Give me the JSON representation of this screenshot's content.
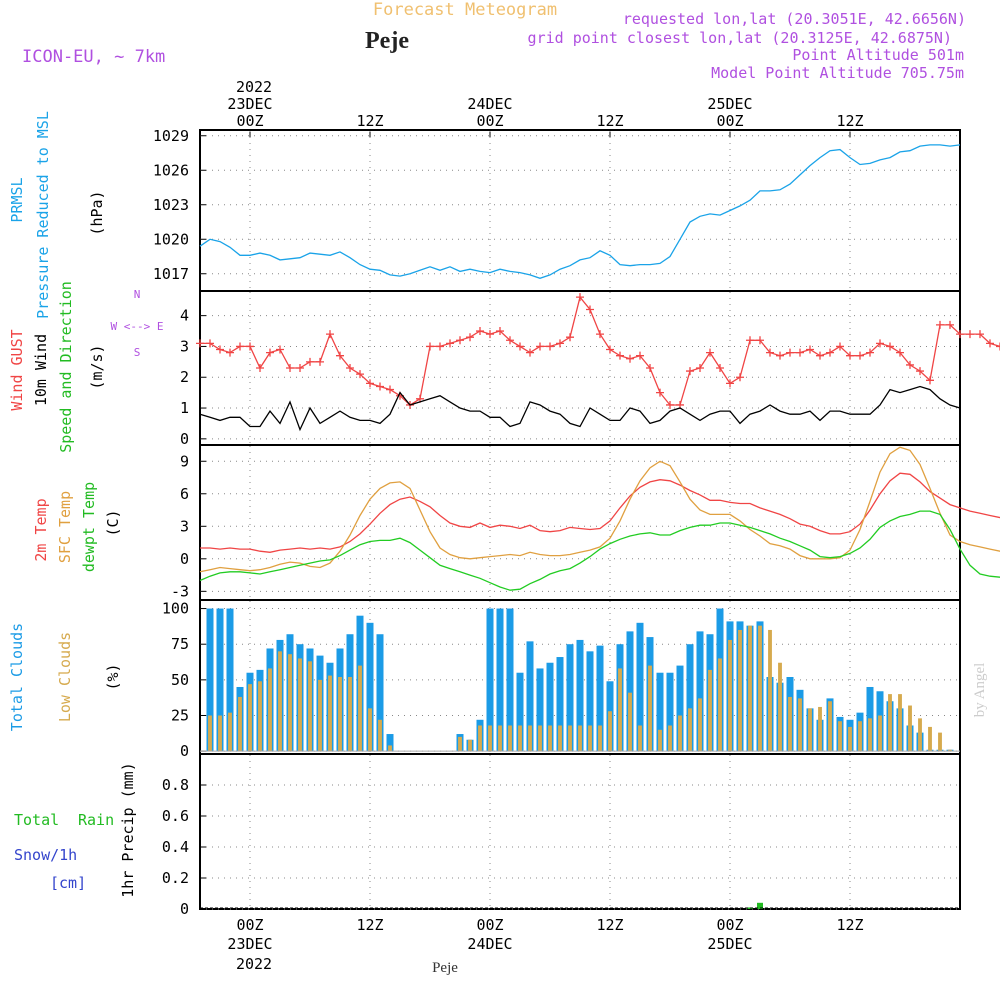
{
  "header": {
    "title": "Forecast Meteogram",
    "city": "Peje",
    "model": "ICON-EU, ~ 7km",
    "requested": "requested lon,lat (20.3051E, 42.6656N)",
    "gridpoint": "grid point closest lon,lat (20.3125E, 42.6875N)",
    "point_alt": "Point Altitude 501m",
    "model_alt": "Model Point Altitude 705.75m",
    "signature": "by Angel",
    "footer_city": "Peje"
  },
  "time_axis": {
    "top_year": "2022",
    "top_dates": [
      {
        "label": "23DEC",
        "hour": 12
      },
      {
        "label": "24DEC",
        "hour": 36
      },
      {
        "label": "25DEC",
        "hour": 60
      }
    ],
    "bottom_dates": [
      {
        "label": "23DEC",
        "hour": 12
      },
      {
        "label": "24DEC",
        "hour": 36
      },
      {
        "label": "25DEC",
        "hour": 60
      }
    ],
    "bottom_year": "2022",
    "ticks": [
      {
        "label": "00Z",
        "hour": 12
      },
      {
        "label": "12Z",
        "hour": 24
      },
      {
        "label": "00Z",
        "hour": 36
      },
      {
        "label": "12Z",
        "hour": 48
      },
      {
        "label": "00Z",
        "hour": 60
      },
      {
        "label": "12Z",
        "hour": 72
      }
    ],
    "hours_range": [
      7,
      83
    ]
  },
  "panel_labels": {
    "pressure": [
      "PRMSL",
      "Pressure Reduced to MSL",
      "(hPa)"
    ],
    "wind": [
      "Wind GUST",
      "10m Wind",
      "Speed and Direction",
      "(m/s)"
    ],
    "compass": [
      "N",
      "W <--> E",
      "S"
    ],
    "temp": [
      "2m Temp",
      "SFC Temp",
      "dewpt Temp",
      "(C)"
    ],
    "clouds": [
      "Total Clouds",
      "Low Clouds",
      "(%)"
    ],
    "precip": [
      "Total",
      "Rain",
      "Snow/1h",
      "[cm]",
      "1hr Precip (mm)"
    ]
  },
  "colors": {
    "pressure": "#1aa3e8",
    "gust": "#f04545",
    "wind": "#000000",
    "t2m": "#f04545",
    "sfc": "#e0a040",
    "dewpt": "#22cc22",
    "total_clouds": "#1b9be6",
    "low_clouds": "#d6aa4e",
    "rain": "#22bb22",
    "snow": "#3344cc",
    "title": "#f0c070",
    "info": "#b050e0"
  },
  "chart_data": [
    {
      "type": "line",
      "name": "pressure",
      "ylabel": "(hPa)",
      "ylim": [
        1015.5,
        1029.5
      ],
      "yticks": [
        1017,
        1020,
        1023,
        1026,
        1029
      ],
      "series": [
        {
          "name": "PRMSL",
          "x0": 7,
          "dx": 1,
          "values": [
            1019.4,
            1020,
            1019.8,
            1019.3,
            1018.6,
            1018.6,
            1018.8,
            1018.6,
            1018.2,
            1018.3,
            1018.4,
            1018.8,
            1018.7,
            1018.6,
            1018.9,
            1018.4,
            1017.8,
            1017.4,
            1017.3,
            1016.9,
            1016.8,
            1017,
            1017.3,
            1017.6,
            1017.3,
            1017.6,
            1017.2,
            1017.4,
            1017.2,
            1017.1,
            1017.4,
            1017.2,
            1017.1,
            1016.9,
            1016.6,
            1016.9,
            1017.4,
            1017.7,
            1018.2,
            1018.4,
            1019,
            1018.6,
            1017.8,
            1017.7,
            1017.8,
            1017.8,
            1017.9,
            1018.5,
            1020,
            1021.5,
            1022,
            1022.2,
            1022.1,
            1022.5,
            1022.9,
            1023.4,
            1024.2,
            1024.2,
            1024.3,
            1024.8,
            1025.6,
            1026.4,
            1027.1,
            1027.7,
            1027.8,
            1027.1,
            1026.5,
            1026.6,
            1026.9,
            1027.1,
            1027.6,
            1027.7,
            1028.1,
            1028.2,
            1028.2,
            1028.1,
            1028.2
          ]
        }
      ]
    },
    {
      "type": "line",
      "name": "wind",
      "ylabel": "(m/s)",
      "ylim": [
        -0.2,
        4.8
      ],
      "yticks": [
        0,
        1,
        2,
        3,
        4
      ],
      "series": [
        {
          "name": "Wind GUST",
          "x0": 7,
          "dx": 1,
          "values": [
            3.1,
            3.1,
            2.9,
            2.8,
            3,
            3,
            2.3,
            2.8,
            2.9,
            2.3,
            2.3,
            2.5,
            2.5,
            3.4,
            2.7,
            2.3,
            2.1,
            1.8,
            1.7,
            1.6,
            1.4,
            1.1,
            1.3,
            3,
            3,
            3.1,
            3.2,
            3.3,
            3.5,
            3.4,
            3.5,
            3.2,
            3,
            2.8,
            3,
            3,
            3.1,
            3.3,
            4.6,
            4.2,
            3.4,
            2.9,
            2.7,
            2.6,
            2.7,
            2.3,
            1.5,
            1.1,
            1.1,
            2.2,
            2.3,
            2.8,
            2.3,
            1.8,
            2,
            3.2,
            3.2,
            2.8,
            2.7,
            2.8,
            2.8,
            2.9,
            2.7,
            2.8,
            3,
            2.7,
            2.7,
            2.8,
            3.1,
            3,
            2.8,
            2.4,
            2.2,
            1.9,
            3.7,
            3.7,
            3.4,
            3.4,
            3.4,
            3.1,
            3
          ]
        },
        {
          "name": "10m Wind",
          "x0": 7,
          "dx": 1,
          "values": [
            0.8,
            0.7,
            0.6,
            0.7,
            0.7,
            0.4,
            0.4,
            0.9,
            0.5,
            1.2,
            0.3,
            1,
            0.5,
            0.7,
            0.9,
            0.7,
            0.6,
            0.6,
            0.5,
            0.8,
            1.5,
            1.1,
            1.2,
            1.3,
            1.4,
            1.2,
            1,
            0.9,
            0.9,
            0.7,
            0.7,
            0.4,
            0.5,
            1.2,
            1.1,
            0.9,
            0.8,
            0.5,
            0.4,
            1,
            0.8,
            0.6,
            0.6,
            1,
            0.9,
            0.5,
            0.6,
            0.9,
            1,
            0.8,
            0.6,
            0.8,
            0.9,
            0.9,
            0.5,
            0.8,
            0.9,
            1.1,
            0.9,
            0.8,
            0.8,
            0.9,
            0.6,
            0.9,
            0.9,
            0.8,
            0.8,
            0.8,
            1.1,
            1.6,
            1.5,
            1.6,
            1.7,
            1.6,
            1.3,
            1.1,
            1
          ]
        }
      ]
    },
    {
      "type": "line",
      "name": "temperature",
      "ylabel": "(C)",
      "ylim": [
        -3.8,
        10.5
      ],
      "yticks": [
        -3,
        0,
        3,
        6,
        9
      ],
      "series": [
        {
          "name": "2m Temp",
          "x0": 7,
          "dx": 1,
          "values": [
            1,
            1,
            0.9,
            1,
            0.9,
            0.9,
            0.7,
            0.6,
            0.8,
            0.9,
            1,
            0.9,
            1,
            0.9,
            1.1,
            1.6,
            2.3,
            3.2,
            4.2,
            5,
            5.5,
            5.7,
            5.3,
            4.8,
            4,
            3.3,
            3,
            2.9,
            3.3,
            2.9,
            3.1,
            3,
            2.8,
            3.1,
            2.6,
            2.5,
            2.6,
            2.9,
            2.8,
            2.7,
            2.8,
            3.5,
            4.7,
            5.8,
            6.6,
            7.1,
            7.3,
            7.2,
            6.8,
            6.3,
            5.9,
            5.4,
            5.4,
            5.2,
            5.1,
            5.1,
            4.7,
            4.4,
            4.1,
            3.7,
            3.2,
            3,
            2.6,
            2.3,
            2.3,
            2.5,
            3.2,
            4.5,
            6,
            7.2,
            7.9,
            7.8,
            7.1,
            6.2,
            5.6,
            5,
            4.7,
            4.4,
            4.2,
            4,
            3.8,
            3.7,
            3.7
          ]
        },
        {
          "name": "SFC Temp",
          "x0": 7,
          "dx": 1,
          "values": [
            -1.2,
            -1,
            -0.8,
            -0.9,
            -1,
            -1.1,
            -1,
            -0.8,
            -0.5,
            -0.3,
            -0.4,
            -0.7,
            -0.8,
            -0.4,
            0.7,
            2.2,
            4,
            5.5,
            6.5,
            7,
            7.1,
            6.5,
            4.5,
            2.5,
            1,
            0.4,
            0.1,
            0,
            0.1,
            0.2,
            0.3,
            0.4,
            0.3,
            0.6,
            0.4,
            0.3,
            0.3,
            0.4,
            0.6,
            0.8,
            1.1,
            1.9,
            3.5,
            5.5,
            7.2,
            8.4,
            9,
            8.6,
            7.1,
            5.5,
            4.5,
            4.1,
            4.1,
            4.1,
            3.5,
            2.7,
            2.1,
            1.4,
            1.2,
            0.9,
            0.3,
            0,
            0,
            0,
            0.1,
            0.8,
            2.7,
            5.3,
            8,
            9.7,
            10.3,
            10,
            8.7,
            6.5,
            4.2,
            2.2,
            1.6,
            1.3,
            1.1,
            0.9,
            0.7,
            0.8,
            0.6
          ]
        },
        {
          "name": "dewpt Temp",
          "x0": 7,
          "dx": 1,
          "values": [
            -2,
            -1.6,
            -1.3,
            -1.2,
            -1.2,
            -1.3,
            -1.4,
            -1.2,
            -1,
            -0.8,
            -0.6,
            -0.4,
            -0.2,
            -0.1,
            0.3,
            0.8,
            1.3,
            1.6,
            1.7,
            1.7,
            1.9,
            1.5,
            0.8,
            0.1,
            -0.6,
            -0.9,
            -1.2,
            -1.5,
            -1.8,
            -2.2,
            -2.6,
            -2.9,
            -2.8,
            -2.3,
            -1.9,
            -1.4,
            -1.1,
            -0.9,
            -0.4,
            0.2,
            0.9,
            1.4,
            1.8,
            2.1,
            2.3,
            2.4,
            2.2,
            2.2,
            2.6,
            2.9,
            3.1,
            3.1,
            3.3,
            3.3,
            3.1,
            2.9,
            2.6,
            2.3,
            1.9,
            1.6,
            1.2,
            0.8,
            0.2,
            0.1,
            0.2,
            0.5,
            1,
            1.8,
            2.9,
            3.5,
            3.9,
            4.1,
            4.4,
            4.4,
            4.1,
            2.7,
            0.9,
            -0.6,
            -1.4,
            -1.6,
            -1.7,
            -1.7,
            -1.4,
            -0.9
          ]
        }
      ]
    },
    {
      "type": "bar",
      "name": "clouds",
      "ylabel": "(%)",
      "ylim": [
        -2,
        106
      ],
      "yticks": [
        0,
        25,
        50,
        75,
        100
      ],
      "series": [
        {
          "name": "Total Clouds",
          "x0": 7,
          "dx": 1,
          "values": [
            100,
            100,
            100,
            100,
            45,
            55,
            57,
            72,
            78,
            82,
            75,
            72,
            67,
            62,
            72,
            82,
            95,
            90,
            82,
            12,
            0,
            0,
            0,
            0,
            0,
            0,
            12,
            8,
            22,
            100,
            100,
            100,
            55,
            77,
            58,
            62,
            66,
            75,
            78,
            70,
            74,
            49,
            75,
            84,
            90,
            80,
            55,
            55,
            60,
            75,
            84,
            82,
            100,
            91,
            91,
            88,
            91,
            52,
            48,
            52,
            43,
            30,
            22,
            37,
            24,
            22,
            27,
            45,
            42,
            35,
            30,
            18,
            13,
            1,
            1,
            1,
            10,
            1,
            1,
            2,
            13,
            18,
            18
          ]
        },
        {
          "name": "Low Clouds",
          "x0": 7,
          "dx": 1,
          "values": [
            16,
            25,
            25,
            27,
            38,
            47,
            49,
            58,
            70,
            68,
            65,
            63,
            50,
            53,
            52,
            52,
            60,
            30,
            22,
            4,
            0,
            0,
            0,
            0,
            0,
            0,
            10,
            8,
            18,
            18,
            18,
            18,
            18,
            18,
            18,
            18,
            18,
            18,
            18,
            18,
            18,
            28,
            58,
            41,
            18,
            60,
            15,
            18,
            25,
            30,
            37,
            57,
            65,
            78,
            85,
            88,
            88,
            85,
            62,
            38,
            37,
            30,
            31,
            35,
            21,
            17,
            21,
            23,
            25,
            40,
            40,
            32,
            23,
            17,
            13,
            1,
            1,
            1,
            10,
            1,
            1,
            2,
            13,
            18,
            18
          ]
        }
      ]
    },
    {
      "type": "bar",
      "name": "precipitation",
      "ylabel": "1hr Precip (mm)",
      "ylim": [
        0,
        1
      ],
      "yticks": [
        0,
        0.2,
        0.4,
        0.6,
        0.8
      ],
      "series": [
        {
          "name": "Total Rain",
          "x0": 7,
          "dx": 1,
          "values": [
            0,
            0,
            0,
            0,
            0,
            0,
            0,
            0,
            0,
            0,
            0,
            0,
            0,
            0,
            0,
            0,
            0,
            0,
            0,
            0,
            0,
            0,
            0,
            0,
            0,
            0,
            0,
            0,
            0,
            0,
            0,
            0,
            0,
            0,
            0,
            0,
            0,
            0,
            0,
            0,
            0,
            0,
            0,
            0,
            0,
            0,
            0,
            0,
            0,
            0,
            0,
            0,
            0,
            0,
            0,
            0.01,
            0.04,
            0,
            0,
            0,
            0,
            0,
            0,
            0,
            0,
            0,
            0,
            0,
            0,
            0,
            0,
            0,
            0,
            0,
            0,
            0,
            0,
            0,
            0,
            0,
            0,
            0,
            0
          ]
        },
        {
          "name": "Snow/1h",
          "x0": 7,
          "dx": 1,
          "values": [
            0
          ]
        }
      ]
    }
  ]
}
